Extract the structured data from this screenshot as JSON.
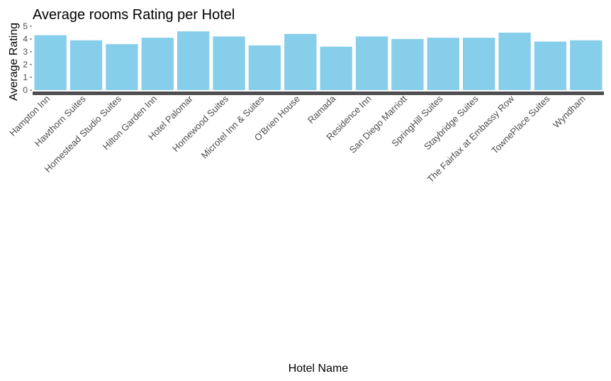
{
  "chart_data": {
    "type": "bar",
    "title": "Average rooms Rating per Hotel",
    "xlabel": "Hotel Name",
    "ylabel": "Average Rating",
    "ylim": [
      0,
      5
    ],
    "yticks": [
      "0",
      "1",
      "2",
      "3",
      "4",
      "5"
    ],
    "bar_color": "#87ceeb",
    "tick_color": "#4d4d4d",
    "grid": false,
    "legend": "none",
    "categories": [
      "Hampton Inn",
      "Hawthorn Suites",
      "Homestead Studio Suites",
      "Hilton Garden Inn",
      "Hotel Palomar",
      "Homewood Suites",
      "Microtel Inn & Suites",
      "O'Brien House",
      "Ramada",
      "Residence Inn",
      "San Diego Marriott",
      "SpringHill Suites",
      "Staybridge Suites",
      "The Fairfax at Embassy Row",
      "TownePlace Suites",
      "Wyndham"
    ],
    "values": [
      4.3,
      3.9,
      3.6,
      4.1,
      4.6,
      4.2,
      3.5,
      4.4,
      3.4,
      4.2,
      4.0,
      4.1,
      4.1,
      4.5,
      3.8,
      3.9
    ]
  }
}
